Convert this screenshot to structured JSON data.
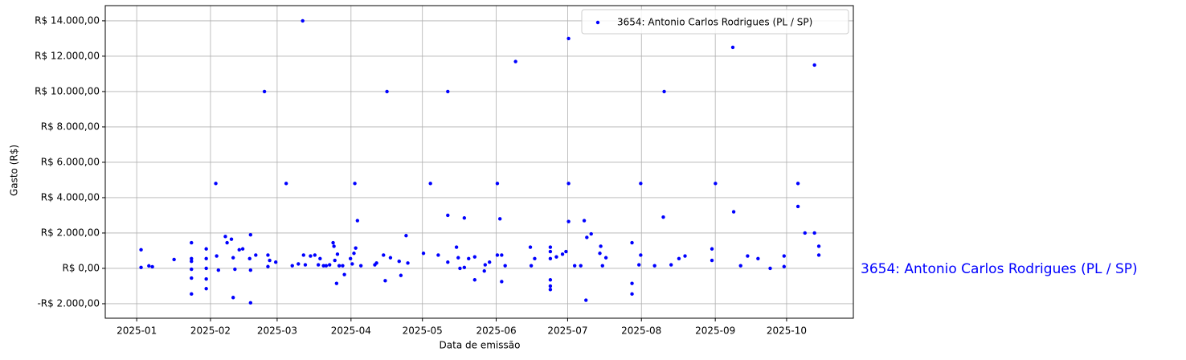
{
  "chart_data": {
    "type": "scatter",
    "xlabel": "Data de emissão",
    "ylabel": "Gasto (R$)",
    "xlim": [
      2024.9638,
      2025.8247
    ],
    "ylim": [
      -2820,
      14860
    ],
    "xticks": [
      {
        "value": 2025.0,
        "label": "2025-01"
      },
      {
        "value": 2025.0849,
        "label": "2025-02"
      },
      {
        "value": 2025.1616,
        "label": "2025-03"
      },
      {
        "value": 2025.2466,
        "label": "2025-04"
      },
      {
        "value": 2025.3288,
        "label": "2025-05"
      },
      {
        "value": 2025.4137,
        "label": "2025-06"
      },
      {
        "value": 2025.4959,
        "label": "2025-07"
      },
      {
        "value": 2025.5808,
        "label": "2025-08"
      },
      {
        "value": 2025.6658,
        "label": "2025-09"
      },
      {
        "value": 2025.7479,
        "label": "2025-10"
      }
    ],
    "yticks": [
      {
        "value": -2000,
        "label": "-R$ 2.000,00"
      },
      {
        "value": 0,
        "label": "R$ 0,00"
      },
      {
        "value": 2000,
        "label": "R$ 2.000,00"
      },
      {
        "value": 4000,
        "label": "R$ 4.000,00"
      },
      {
        "value": 6000,
        "label": "R$ 6.000,00"
      },
      {
        "value": 8000,
        "label": "R$ 8.000,00"
      },
      {
        "value": 10000,
        "label": "R$ 10.000,00"
      },
      {
        "value": 12000,
        "label": "R$ 12.000,00"
      },
      {
        "value": 14000,
        "label": "R$ 14.000,00"
      }
    ],
    "grid": true,
    "legend": "upper right",
    "series": [
      {
        "name": "3654: Antonio Carlos Rodrigues (PL / SP)",
        "color": "#0000ff",
        "x": [
          2025.005,
          2025.005,
          2025.014,
          2025.018,
          2025.043,
          2025.063,
          2025.063,
          2025.063,
          2025.063,
          2025.063,
          2025.063,
          2025.08,
          2025.08,
          2025.08,
          2025.08,
          2025.08,
          2025.091,
          2025.092,
          2025.094,
          2025.102,
          2025.104,
          2025.109,
          2025.111,
          2025.111,
          2025.113,
          2025.118,
          2025.122,
          2025.13,
          2025.131,
          2025.131,
          2025.131,
          2025.137,
          2025.147,
          2025.151,
          2025.151,
          2025.153,
          2025.16,
          2025.172,
          2025.179,
          2025.186,
          2025.191,
          2025.192,
          2025.194,
          2025.2,
          2025.205,
          2025.209,
          2025.211,
          2025.215,
          2025.218,
          2025.222,
          2025.226,
          2025.227,
          2025.228,
          2025.23,
          2025.231,
          2025.233,
          2025.237,
          2025.239,
          2025.246,
          2025.248,
          2025.25,
          2025.251,
          2025.252,
          2025.254,
          2025.258,
          2025.274,
          2025.276,
          2025.284,
          2025.286,
          2025.288,
          2025.292,
          2025.302,
          2025.304,
          2025.31,
          2025.312,
          2025.33,
          2025.338,
          2025.347,
          2025.358,
          2025.358,
          2025.358,
          2025.368,
          2025.37,
          2025.372,
          2025.377,
          2025.377,
          2025.382,
          2025.389,
          2025.389,
          2025.4,
          2025.401,
          2025.406,
          2025.415,
          2025.415,
          2025.418,
          2025.42,
          2025.42,
          2025.424,
          2025.436,
          2025.453,
          2025.454,
          2025.458,
          2025.476,
          2025.476,
          2025.476,
          2025.476,
          2025.476,
          2025.476,
          2025.483,
          2025.49,
          2025.494,
          2025.497,
          2025.497,
          2025.497,
          2025.504,
          2025.511,
          2025.515,
          2025.517,
          2025.518,
          2025.523,
          2025.533,
          2025.534,
          2025.536,
          2025.54,
          2025.58,
          2025.58,
          2025.57,
          2025.57,
          2025.57,
          2025.578,
          2025.596,
          2025.606,
          2025.607,
          2025.615,
          2025.624,
          2025.631,
          2025.662,
          2025.662,
          2025.666,
          2025.686,
          2025.687,
          2025.695,
          2025.703,
          2025.715,
          2025.729,
          2025.745,
          2025.745,
          2025.761,
          2025.761,
          2025.769,
          2025.78,
          2025.78,
          2025.785,
          2025.785
        ],
        "values": [
          1050,
          50,
          140,
          90,
          500,
          1450,
          550,
          400,
          -50,
          -550,
          -1450,
          1100,
          550,
          0,
          -600,
          -1150,
          4800,
          700,
          -100,
          1800,
          1450,
          1650,
          600,
          -1650,
          -50,
          1050,
          1100,
          550,
          1900,
          -100,
          -1950,
          750,
          10000,
          750,
          100,
          450,
          350,
          4800,
          150,
          250,
          14000,
          750,
          200,
          700,
          750,
          200,
          550,
          150,
          150,
          200,
          1450,
          1250,
          450,
          -850,
          800,
          150,
          150,
          -350,
          550,
          250,
          850,
          4800,
          1150,
          2700,
          150,
          200,
          300,
          750,
          -700,
          10000,
          600,
          400,
          -400,
          1850,
          300,
          850,
          4800,
          750,
          3000,
          10000,
          350,
          1200,
          600,
          0,
          2850,
          50,
          550,
          -650,
          650,
          -150,
          200,
          350,
          750,
          4800,
          2800,
          -750,
          750,
          150,
          11700,
          1200,
          150,
          550,
          1200,
          950,
          550,
          -650,
          -1000,
          -1200,
          650,
          800,
          950,
          13000,
          4800,
          2650,
          150,
          150,
          2700,
          -1800,
          1750,
          1950,
          850,
          1250,
          150,
          600,
          750,
          4800,
          -850,
          -1450,
          1450,
          200,
          150,
          2900,
          10000,
          200,
          550,
          700,
          1100,
          450,
          4800,
          12500,
          3200,
          150,
          700,
          550,
          0,
          700,
          100,
          4800,
          3500,
          2000,
          11500,
          2000,
          1250,
          750
        ]
      }
    ]
  }
}
